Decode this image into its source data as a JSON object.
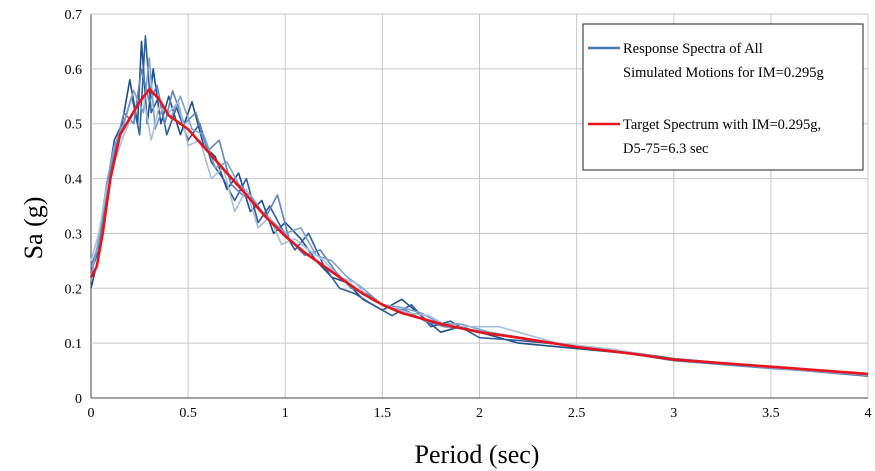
{
  "chart_data": {
    "type": "line",
    "xlabel": "Period (sec)",
    "ylabel": "Sa (g)",
    "xlim": [
      0,
      4
    ],
    "ylim": [
      0,
      0.7
    ],
    "xticks": [
      "0",
      "0.5",
      "1",
      "1.5",
      "2",
      "2.5",
      "3",
      "3.5",
      "4"
    ],
    "yticks": [
      "0",
      "0.1",
      "0.2",
      "0.3",
      "0.4",
      "0.5",
      "0.6",
      "0.7"
    ],
    "grid": true,
    "legend_position": "top-right",
    "legend": [
      {
        "lines": [
          "Response Spectra of All",
          "Simulated Motions for IM=0.295g"
        ],
        "color": "#4a76ae"
      },
      {
        "lines": [
          "Target Spectrum with IM=0.295g,",
          "D5-75=6.3 sec"
        ],
        "color": "#e8131b"
      }
    ],
    "target": {
      "color": "#e8131b",
      "points": [
        [
          0,
          0.22
        ],
        [
          0.03,
          0.24
        ],
        [
          0.06,
          0.3
        ],
        [
          0.1,
          0.4
        ],
        [
          0.15,
          0.48
        ],
        [
          0.2,
          0.51
        ],
        [
          0.25,
          0.54
        ],
        [
          0.3,
          0.563
        ],
        [
          0.35,
          0.545
        ],
        [
          0.4,
          0.515
        ],
        [
          0.5,
          0.49
        ],
        [
          0.6,
          0.45
        ],
        [
          0.7,
          0.41
        ],
        [
          0.8,
          0.37
        ],
        [
          0.9,
          0.33
        ],
        [
          1.0,
          0.295
        ],
        [
          1.1,
          0.265
        ],
        [
          1.2,
          0.24
        ],
        [
          1.3,
          0.215
        ],
        [
          1.4,
          0.19
        ],
        [
          1.5,
          0.17
        ],
        [
          1.6,
          0.155
        ],
        [
          1.8,
          0.135
        ],
        [
          2.0,
          0.12
        ],
        [
          2.2,
          0.11
        ],
        [
          2.5,
          0.093
        ],
        [
          2.8,
          0.08
        ],
        [
          3.0,
          0.07
        ],
        [
          3.5,
          0.057
        ],
        [
          4.0,
          0.044
        ]
      ]
    },
    "simulated": {
      "colors": [
        "#1f4e8c",
        "#2f5f9e",
        "#5a85bd",
        "#7fa0cc",
        "#a9bedc"
      ],
      "points": [
        [
          [
            0,
            0.2
          ],
          [
            0.04,
            0.26
          ],
          [
            0.08,
            0.38
          ],
          [
            0.12,
            0.47
          ],
          [
            0.16,
            0.5
          ],
          [
            0.2,
            0.58
          ],
          [
            0.24,
            0.5
          ],
          [
            0.26,
            0.65
          ],
          [
            0.29,
            0.5
          ],
          [
            0.32,
            0.6
          ],
          [
            0.36,
            0.5
          ],
          [
            0.4,
            0.55
          ],
          [
            0.46,
            0.48
          ],
          [
            0.52,
            0.54
          ],
          [
            0.58,
            0.46
          ],
          [
            0.64,
            0.44
          ],
          [
            0.7,
            0.38
          ],
          [
            0.76,
            0.41
          ],
          [
            0.82,
            0.34
          ],
          [
            0.88,
            0.36
          ],
          [
            0.94,
            0.3
          ],
          [
            1.0,
            0.32
          ],
          [
            1.08,
            0.29
          ],
          [
            1.16,
            0.25
          ],
          [
            1.24,
            0.22
          ],
          [
            1.32,
            0.21
          ],
          [
            1.4,
            0.18
          ],
          [
            1.5,
            0.16
          ],
          [
            1.6,
            0.18
          ],
          [
            1.7,
            0.15
          ],
          [
            1.8,
            0.12
          ],
          [
            1.9,
            0.13
          ],
          [
            2.0,
            0.12
          ],
          [
            2.2,
            0.1
          ],
          [
            2.5,
            0.09
          ],
          [
            2.8,
            0.08
          ],
          [
            3.0,
            0.07
          ],
          [
            3.5,
            0.055
          ],
          [
            4.0,
            0.04
          ]
        ],
        [
          [
            0,
            0.23
          ],
          [
            0.04,
            0.27
          ],
          [
            0.08,
            0.36
          ],
          [
            0.12,
            0.44
          ],
          [
            0.16,
            0.49
          ],
          [
            0.21,
            0.55
          ],
          [
            0.25,
            0.48
          ],
          [
            0.28,
            0.66
          ],
          [
            0.31,
            0.52
          ],
          [
            0.35,
            0.55
          ],
          [
            0.39,
            0.48
          ],
          [
            0.44,
            0.53
          ],
          [
            0.5,
            0.47
          ],
          [
            0.56,
            0.5
          ],
          [
            0.62,
            0.43
          ],
          [
            0.68,
            0.4
          ],
          [
            0.74,
            0.36
          ],
          [
            0.8,
            0.4
          ],
          [
            0.86,
            0.32
          ],
          [
            0.92,
            0.35
          ],
          [
            0.98,
            0.31
          ],
          [
            1.05,
            0.27
          ],
          [
            1.12,
            0.3
          ],
          [
            1.2,
            0.24
          ],
          [
            1.28,
            0.2
          ],
          [
            1.36,
            0.19
          ],
          [
            1.45,
            0.17
          ],
          [
            1.55,
            0.15
          ],
          [
            1.65,
            0.17
          ],
          [
            1.75,
            0.13
          ],
          [
            1.85,
            0.14
          ],
          [
            2.0,
            0.11
          ],
          [
            2.2,
            0.105
          ],
          [
            2.5,
            0.095
          ],
          [
            2.8,
            0.082
          ],
          [
            3.0,
            0.072
          ],
          [
            3.5,
            0.056
          ],
          [
            4.0,
            0.042
          ]
        ],
        [
          [
            0,
            0.24
          ],
          [
            0.04,
            0.28
          ],
          [
            0.08,
            0.37
          ],
          [
            0.12,
            0.45
          ],
          [
            0.17,
            0.52
          ],
          [
            0.22,
            0.5
          ],
          [
            0.26,
            0.6
          ],
          [
            0.3,
            0.54
          ],
          [
            0.34,
            0.57
          ],
          [
            0.38,
            0.5
          ],
          [
            0.42,
            0.56
          ],
          [
            0.48,
            0.5
          ],
          [
            0.54,
            0.52
          ],
          [
            0.6,
            0.45
          ],
          [
            0.66,
            0.47
          ],
          [
            0.72,
            0.39
          ],
          [
            0.78,
            0.37
          ],
          [
            0.84,
            0.36
          ],
          [
            0.9,
            0.33
          ],
          [
            0.96,
            0.37
          ],
          [
            1.02,
            0.29
          ],
          [
            1.1,
            0.26
          ],
          [
            1.18,
            0.27
          ],
          [
            1.26,
            0.23
          ],
          [
            1.34,
            0.2
          ],
          [
            1.42,
            0.19
          ],
          [
            1.52,
            0.165
          ],
          [
            1.62,
            0.16
          ],
          [
            1.72,
            0.14
          ],
          [
            1.82,
            0.13
          ],
          [
            1.95,
            0.125
          ],
          [
            2.1,
            0.115
          ],
          [
            2.4,
            0.098
          ],
          [
            2.7,
            0.085
          ],
          [
            3.0,
            0.068
          ],
          [
            3.5,
            0.054
          ],
          [
            4.0,
            0.043
          ]
        ],
        [
          [
            0,
            0.22
          ],
          [
            0.04,
            0.29
          ],
          [
            0.08,
            0.39
          ],
          [
            0.12,
            0.46
          ],
          [
            0.17,
            0.5
          ],
          [
            0.22,
            0.56
          ],
          [
            0.27,
            0.52
          ],
          [
            0.3,
            0.62
          ],
          [
            0.33,
            0.49
          ],
          [
            0.37,
            0.53
          ],
          [
            0.41,
            0.51
          ],
          [
            0.46,
            0.55
          ],
          [
            0.52,
            0.49
          ],
          [
            0.58,
            0.48
          ],
          [
            0.64,
            0.42
          ],
          [
            0.7,
            0.43
          ],
          [
            0.76,
            0.39
          ],
          [
            0.82,
            0.37
          ],
          [
            0.88,
            0.34
          ],
          [
            0.94,
            0.32
          ],
          [
            1.0,
            0.3
          ],
          [
            1.08,
            0.31
          ],
          [
            1.16,
            0.26
          ],
          [
            1.24,
            0.25
          ],
          [
            1.32,
            0.22
          ],
          [
            1.4,
            0.2
          ],
          [
            1.5,
            0.17
          ],
          [
            1.6,
            0.165
          ],
          [
            1.7,
            0.155
          ],
          [
            1.8,
            0.135
          ],
          [
            1.9,
            0.135
          ],
          [
            2.05,
            0.12
          ],
          [
            2.3,
            0.105
          ],
          [
            2.6,
            0.09
          ],
          [
            2.9,
            0.075
          ],
          [
            3.2,
            0.065
          ],
          [
            3.6,
            0.052
          ],
          [
            4.0,
            0.041
          ]
        ],
        [
          [
            0,
            0.25
          ],
          [
            0.04,
            0.3
          ],
          [
            0.08,
            0.38
          ],
          [
            0.12,
            0.43
          ],
          [
            0.17,
            0.48
          ],
          [
            0.22,
            0.52
          ],
          [
            0.27,
            0.55
          ],
          [
            0.31,
            0.47
          ],
          [
            0.35,
            0.53
          ],
          [
            0.4,
            0.52
          ],
          [
            0.45,
            0.54
          ],
          [
            0.5,
            0.46
          ],
          [
            0.56,
            0.47
          ],
          [
            0.62,
            0.4
          ],
          [
            0.68,
            0.42
          ],
          [
            0.74,
            0.34
          ],
          [
            0.8,
            0.38
          ],
          [
            0.86,
            0.31
          ],
          [
            0.92,
            0.33
          ],
          [
            0.98,
            0.28
          ],
          [
            1.05,
            0.29
          ],
          [
            1.12,
            0.27
          ],
          [
            1.2,
            0.25
          ],
          [
            1.28,
            0.22
          ],
          [
            1.36,
            0.21
          ],
          [
            1.44,
            0.18
          ],
          [
            1.54,
            0.165
          ],
          [
            1.64,
            0.155
          ],
          [
            1.74,
            0.15
          ],
          [
            1.84,
            0.13
          ],
          [
            1.95,
            0.13
          ],
          [
            2.1,
            0.13
          ],
          [
            2.4,
            0.1
          ],
          [
            2.7,
            0.088
          ],
          [
            3.0,
            0.07
          ],
          [
            3.5,
            0.056
          ],
          [
            4.0,
            0.043
          ]
        ]
      ]
    }
  }
}
